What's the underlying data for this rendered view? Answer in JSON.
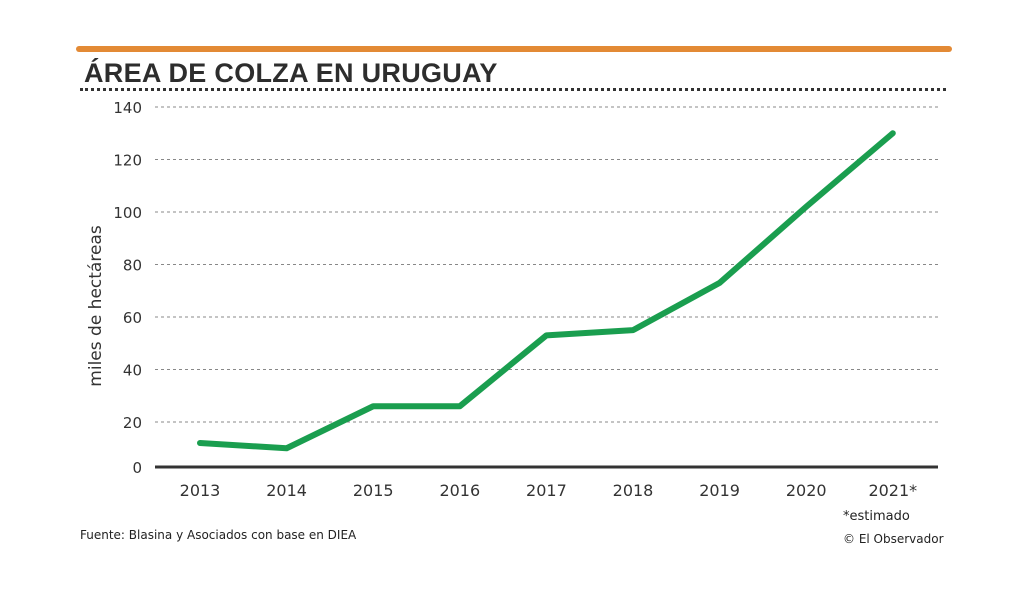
{
  "chart_data": {
    "type": "line",
    "title": "ÁREA DE COLZA EN URUGUAY",
    "xlabel": "",
    "ylabel": "miles de hectáreas",
    "categories": [
      "2013",
      "2014",
      "2015",
      "2016",
      "2017",
      "2018",
      "2019",
      "2020",
      "2021*"
    ],
    "series": [
      {
        "name": "Área de colza",
        "values": [
          12,
          10,
          26,
          26,
          53,
          55,
          73,
          102,
          130
        ],
        "color": "#1a9e4f"
      }
    ],
    "yticks": [
      0,
      20,
      40,
      60,
      80,
      100,
      120,
      140
    ],
    "ylim": [
      0,
      140
    ],
    "grid": true,
    "legend": "none"
  },
  "footer": {
    "source": "Fuente: Blasina y Asociados con base en DIEA",
    "note": "*estimado",
    "credit": "© El Observador"
  },
  "colors": {
    "accent": "#e38a35",
    "line": "#1a9e4f"
  }
}
